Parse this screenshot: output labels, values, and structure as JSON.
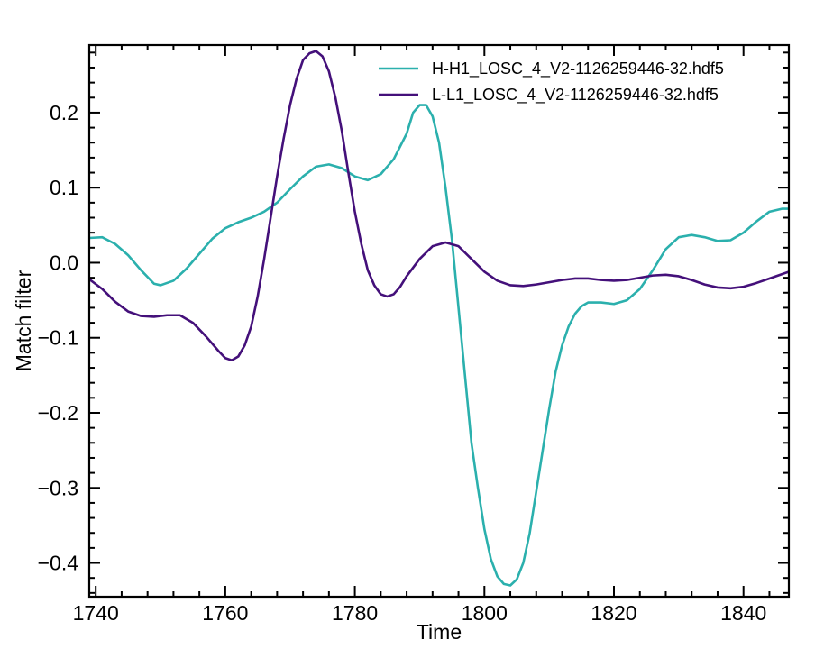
{
  "chart_data": {
    "type": "line",
    "xlabel": "Time",
    "ylabel": "Match filter",
    "xlim": [
      1739,
      1847
    ],
    "ylim": [
      -0.445,
      0.29
    ],
    "x_ticks": [
      1740,
      1760,
      1780,
      1800,
      1820,
      1840
    ],
    "x_tick_labels": [
      "1740",
      "1760",
      "1780",
      "1800",
      "1820",
      "1840"
    ],
    "y_ticks": [
      0.2,
      0.1,
      0.0,
      -0.1,
      -0.2,
      -0.3,
      -0.4
    ],
    "y_tick_labels": [
      "0.2",
      "0.1",
      "0.0",
      "−0.1",
      "−0.2",
      "−0.3",
      "−0.4"
    ],
    "legend_position": "top-right",
    "grid": false,
    "series": [
      {
        "name": "H-H1_LOSC_4_V2-1126259446-32.hdf5",
        "color": "#2bb0ad",
        "points": [
          [
            1739,
            0.033
          ],
          [
            1741,
            0.034
          ],
          [
            1743,
            0.025
          ],
          [
            1745,
            0.01
          ],
          [
            1747,
            -0.01
          ],
          [
            1749,
            -0.028
          ],
          [
            1750,
            -0.03
          ],
          [
            1752,
            -0.024
          ],
          [
            1754,
            -0.008
          ],
          [
            1756,
            0.012
          ],
          [
            1758,
            0.032
          ],
          [
            1760,
            0.046
          ],
          [
            1762,
            0.054
          ],
          [
            1764,
            0.06
          ],
          [
            1766,
            0.068
          ],
          [
            1768,
            0.08
          ],
          [
            1770,
            0.098
          ],
          [
            1772,
            0.115
          ],
          [
            1774,
            0.128
          ],
          [
            1776,
            0.131
          ],
          [
            1778,
            0.126
          ],
          [
            1780,
            0.115
          ],
          [
            1782,
            0.11
          ],
          [
            1784,
            0.118
          ],
          [
            1786,
            0.138
          ],
          [
            1788,
            0.172
          ],
          [
            1789,
            0.2
          ],
          [
            1790,
            0.21
          ],
          [
            1791,
            0.21
          ],
          [
            1792,
            0.195
          ],
          [
            1793,
            0.16
          ],
          [
            1794,
            0.1
          ],
          [
            1795,
            0.03
          ],
          [
            1796,
            -0.06
          ],
          [
            1797,
            -0.15
          ],
          [
            1798,
            -0.24
          ],
          [
            1799,
            -0.3
          ],
          [
            1800,
            -0.355
          ],
          [
            1801,
            -0.395
          ],
          [
            1802,
            -0.418
          ],
          [
            1803,
            -0.428
          ],
          [
            1804,
            -0.43
          ],
          [
            1805,
            -0.422
          ],
          [
            1806,
            -0.4
          ],
          [
            1807,
            -0.36
          ],
          [
            1808,
            -0.305
          ],
          [
            1809,
            -0.25
          ],
          [
            1810,
            -0.195
          ],
          [
            1811,
            -0.145
          ],
          [
            1812,
            -0.11
          ],
          [
            1813,
            -0.085
          ],
          [
            1814,
            -0.068
          ],
          [
            1815,
            -0.058
          ],
          [
            1816,
            -0.053
          ],
          [
            1818,
            -0.053
          ],
          [
            1820,
            -0.055
          ],
          [
            1822,
            -0.05
          ],
          [
            1824,
            -0.035
          ],
          [
            1826,
            -0.01
          ],
          [
            1828,
            0.018
          ],
          [
            1830,
            0.034
          ],
          [
            1832,
            0.037
          ],
          [
            1834,
            0.034
          ],
          [
            1836,
            0.029
          ],
          [
            1838,
            0.03
          ],
          [
            1840,
            0.04
          ],
          [
            1842,
            0.055
          ],
          [
            1844,
            0.068
          ],
          [
            1846,
            0.072
          ],
          [
            1847,
            0.072
          ]
        ]
      },
      {
        "name": "L-L1_LOSC_4_V2-1126259446-32.hdf5",
        "color": "#44107a",
        "points": [
          [
            1739,
            -0.022
          ],
          [
            1741,
            -0.035
          ],
          [
            1743,
            -0.052
          ],
          [
            1745,
            -0.065
          ],
          [
            1747,
            -0.071
          ],
          [
            1749,
            -0.072
          ],
          [
            1751,
            -0.07
          ],
          [
            1753,
            -0.07
          ],
          [
            1755,
            -0.08
          ],
          [
            1757,
            -0.098
          ],
          [
            1759,
            -0.118
          ],
          [
            1760,
            -0.127
          ],
          [
            1761,
            -0.13
          ],
          [
            1762,
            -0.125
          ],
          [
            1763,
            -0.11
          ],
          [
            1764,
            -0.085
          ],
          [
            1765,
            -0.045
          ],
          [
            1766,
            0.005
          ],
          [
            1767,
            0.06
          ],
          [
            1768,
            0.115
          ],
          [
            1769,
            0.165
          ],
          [
            1770,
            0.21
          ],
          [
            1771,
            0.245
          ],
          [
            1772,
            0.27
          ],
          [
            1773,
            0.279
          ],
          [
            1774,
            0.282
          ],
          [
            1775,
            0.275
          ],
          [
            1776,
            0.255
          ],
          [
            1777,
            0.22
          ],
          [
            1778,
            0.175
          ],
          [
            1779,
            0.12
          ],
          [
            1780,
            0.068
          ],
          [
            1781,
            0.025
          ],
          [
            1782,
            -0.01
          ],
          [
            1783,
            -0.03
          ],
          [
            1784,
            -0.042
          ],
          [
            1785,
            -0.045
          ],
          [
            1786,
            -0.042
          ],
          [
            1787,
            -0.032
          ],
          [
            1788,
            -0.018
          ],
          [
            1790,
            0.005
          ],
          [
            1792,
            0.022
          ],
          [
            1794,
            0.027
          ],
          [
            1796,
            0.022
          ],
          [
            1798,
            0.005
          ],
          [
            1800,
            -0.012
          ],
          [
            1802,
            -0.024
          ],
          [
            1804,
            -0.03
          ],
          [
            1806,
            -0.031
          ],
          [
            1808,
            -0.029
          ],
          [
            1810,
            -0.026
          ],
          [
            1812,
            -0.023
          ],
          [
            1814,
            -0.021
          ],
          [
            1816,
            -0.021
          ],
          [
            1818,
            -0.023
          ],
          [
            1820,
            -0.024
          ],
          [
            1822,
            -0.023
          ],
          [
            1824,
            -0.02
          ],
          [
            1826,
            -0.017
          ],
          [
            1828,
            -0.016
          ],
          [
            1830,
            -0.018
          ],
          [
            1832,
            -0.023
          ],
          [
            1834,
            -0.029
          ],
          [
            1836,
            -0.033
          ],
          [
            1838,
            -0.034
          ],
          [
            1840,
            -0.032
          ],
          [
            1842,
            -0.027
          ],
          [
            1844,
            -0.021
          ],
          [
            1846,
            -0.015
          ],
          [
            1847,
            -0.012
          ]
        ]
      }
    ]
  }
}
